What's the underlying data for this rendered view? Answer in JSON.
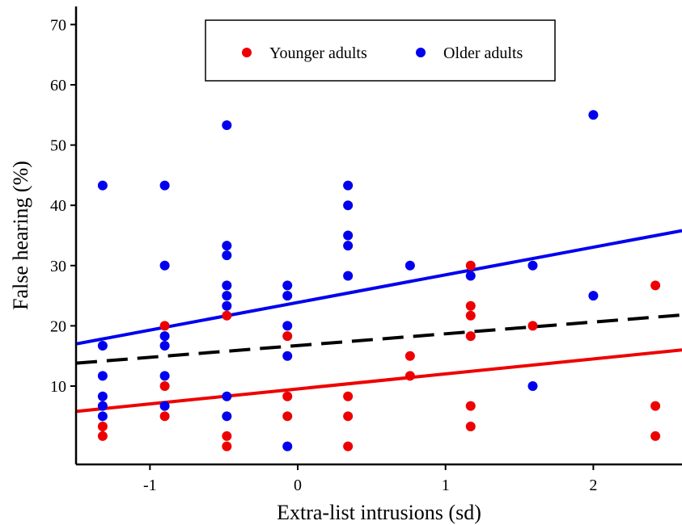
{
  "chart_data": {
    "type": "scatter",
    "xlabel": "Extra-list intrusions (sd)",
    "ylabel": "False hearing (%)",
    "xlim": [
      -1.5,
      2.6
    ],
    "ylim": [
      -3,
      73
    ],
    "x_ticks": [
      -1,
      0,
      1,
      2
    ],
    "x_tick_labels": [
      "-1",
      "0",
      "1",
      "2"
    ],
    "y_ticks": [
      10,
      20,
      30,
      40,
      50,
      60,
      70
    ],
    "y_tick_labels": [
      "10",
      "20",
      "30",
      "40",
      "50",
      "60",
      "70"
    ],
    "grid": false,
    "legend_position": "top-center",
    "series": [
      {
        "name": "Younger adults",
        "color": "#ee0000",
        "points": [
          [
            -1.32,
            3.3
          ],
          [
            -1.32,
            1.7
          ],
          [
            -0.9,
            20.0
          ],
          [
            -0.9,
            10.0
          ],
          [
            -0.9,
            5.0
          ],
          [
            -0.48,
            21.7
          ],
          [
            -0.48,
            1.7
          ],
          [
            -0.48,
            0.0
          ],
          [
            -0.07,
            18.3
          ],
          [
            -0.07,
            8.3
          ],
          [
            -0.07,
            5.0
          ],
          [
            0.34,
            8.3
          ],
          [
            0.34,
            5.0
          ],
          [
            0.34,
            0.0
          ],
          [
            0.76,
            15.0
          ],
          [
            0.76,
            11.7
          ],
          [
            1.17,
            30.0
          ],
          [
            1.17,
            23.3
          ],
          [
            1.17,
            21.7
          ],
          [
            1.17,
            18.3
          ],
          [
            1.17,
            6.7
          ],
          [
            1.17,
            3.3
          ],
          [
            1.59,
            20.0
          ],
          [
            2.42,
            26.7
          ],
          [
            2.42,
            6.7
          ],
          [
            2.42,
            1.7
          ]
        ],
        "fit_line": [
          [
            -1.5,
            5.8
          ],
          [
            2.6,
            16.0
          ]
        ]
      },
      {
        "name": "Older adults",
        "color": "#0000ee",
        "points": [
          [
            -1.32,
            43.3
          ],
          [
            -1.32,
            16.7
          ],
          [
            -1.32,
            11.7
          ],
          [
            -1.32,
            8.3
          ],
          [
            -1.32,
            6.7
          ],
          [
            -1.32,
            5.0
          ],
          [
            -0.9,
            43.3
          ],
          [
            -0.9,
            30.0
          ],
          [
            -0.9,
            18.3
          ],
          [
            -0.9,
            16.7
          ],
          [
            -0.9,
            11.7
          ],
          [
            -0.9,
            6.7
          ],
          [
            -0.48,
            53.3
          ],
          [
            -0.48,
            33.3
          ],
          [
            -0.48,
            31.7
          ],
          [
            -0.48,
            26.7
          ],
          [
            -0.48,
            25.0
          ],
          [
            -0.48,
            23.3
          ],
          [
            -0.48,
            8.3
          ],
          [
            -0.48,
            5.0
          ],
          [
            -0.07,
            26.7
          ],
          [
            -0.07,
            25.0
          ],
          [
            -0.07,
            20.0
          ],
          [
            -0.07,
            15.0
          ],
          [
            -0.07,
            0.0
          ],
          [
            0.34,
            43.3
          ],
          [
            0.34,
            40.0
          ],
          [
            0.34,
            35.0
          ],
          [
            0.34,
            33.3
          ],
          [
            0.34,
            28.3
          ],
          [
            0.76,
            30.0
          ],
          [
            1.17,
            28.3
          ],
          [
            1.59,
            30.0
          ],
          [
            1.59,
            10.0
          ],
          [
            2.0,
            55.0
          ],
          [
            2.0,
            25.0
          ]
        ],
        "fit_line": [
          [
            -1.5,
            17.0
          ],
          [
            2.6,
            35.8
          ]
        ]
      },
      {
        "color": "#000000",
        "line_style": "dashed",
        "fit_line": [
          [
            -1.5,
            13.8
          ],
          [
            2.6,
            21.8
          ]
        ]
      }
    ]
  }
}
